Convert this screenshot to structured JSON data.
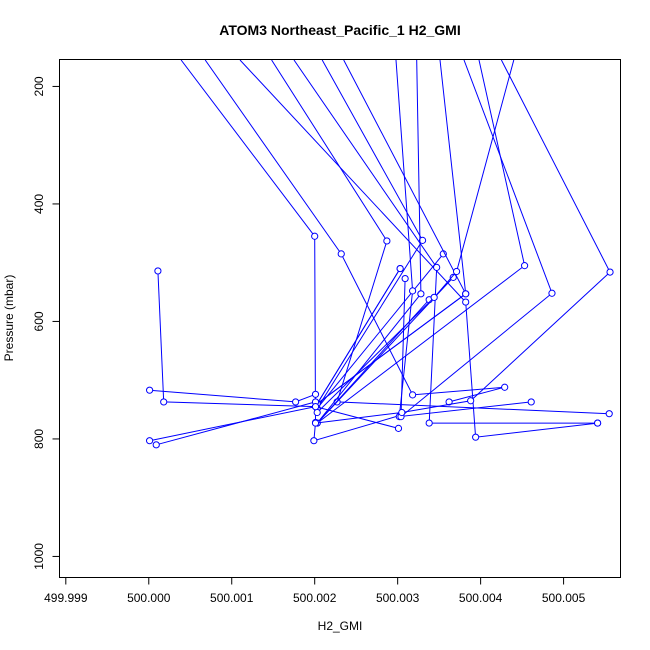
{
  "chart_data": {
    "type": "line",
    "title": "ATOM3 Northeast_Pacific_1 H2_GMI",
    "xlabel": "H2_GMI",
    "ylabel": "Pressure (mbar)",
    "xlim": [
      499.99893,
      500.00568
    ],
    "ylim": [
      1035,
      155
    ],
    "y_inverted": true,
    "grid": false,
    "legend": "none",
    "color": "#0000ff",
    "x_ticks": [
      {
        "value": 499.999,
        "label": "499.999"
      },
      {
        "value": 500.0,
        "label": "500.000"
      },
      {
        "value": 500.001,
        "label": "500.001"
      },
      {
        "value": 500.002,
        "label": "500.002"
      },
      {
        "value": 500.003,
        "label": "500.003"
      },
      {
        "value": 500.004,
        "label": "500.004"
      },
      {
        "value": 500.005,
        "label": "500.005"
      }
    ],
    "y_ticks": [
      {
        "value": 200,
        "label": "200"
      },
      {
        "value": 400,
        "label": "400"
      },
      {
        "value": 600,
        "label": "600"
      },
      {
        "value": 800,
        "label": "800"
      },
      {
        "value": 1000,
        "label": "1000"
      }
    ],
    "series": [
      {
        "x": [
          500.00039,
          500.002,
          500.00201,
          500.00199,
          500.00303
        ],
        "y": [
          155,
          455,
          772,
          803,
          760
        ]
      },
      {
        "x": [
          500.00068,
          500.00232,
          500.00318,
          500.00429,
          500.00362
        ],
        "y": [
          155,
          485,
          725,
          712,
          737
        ]
      },
      {
        "x": [
          500.0011,
          500.00382,
          500.00394,
          500.00541
        ],
        "y": [
          155,
          567,
          797,
          773
        ]
      },
      {
        "x": [
          500.00148,
          500.00287,
          500.00227,
          500.00555
        ],
        "y": [
          155,
          463,
          737,
          757
        ]
      },
      {
        "x": [
          500.00175,
          500.00347,
          500.00338,
          500.00541
        ],
        "y": [
          155,
          508,
          773,
          773
        ]
      },
      {
        "x": [
          500.00209,
          500.0033,
          500.00203,
          500.00355
        ],
        "y": [
          155,
          462,
          748,
          485
        ]
      },
      {
        "x": [
          500.00235,
          500.00382,
          500.00203,
          500.00303
        ],
        "y": [
          155,
          553,
          740,
          510
        ]
      },
      {
        "x": [
          500.00298,
          500.00318,
          500.00302,
          500.00461
        ],
        "y": [
          155,
          548,
          762,
          737
        ]
      },
      {
        "x": [
          500.00323,
          500.00328,
          500.00203,
          500.00367
        ],
        "y": [
          155,
          553,
          773,
          525
        ]
      },
      {
        "x": [
          500.00351,
          500.00382,
          500.00203,
          500.00303
        ],
        "y": [
          155,
          553,
          740,
          510
        ]
      },
      {
        "x": [
          500.0038,
          500.00486,
          500.00304,
          500.00309
        ],
        "y": [
          155,
          552,
          762,
          527
        ]
      },
      {
        "x": [
          500.00398,
          500.00453,
          500.00203,
          500.00338
        ],
        "y": [
          155,
          505,
          773,
          563
        ]
      },
      {
        "x": [
          500.00425,
          500.00556,
          500.00388,
          500.00305,
          500.00201
        ],
        "y": [
          155,
          516,
          735,
          755,
          773
        ]
      },
      {
        "x": [
          500.0044,
          500.00371,
          500.00344,
          500.00203
        ],
        "y": [
          155,
          515,
          559,
          755
        ]
      },
      {
        "x": [
          500.00001,
          500.00177,
          500.00201
        ],
        "y": [
          717,
          737,
          724
        ]
      },
      {
        "x": [
          500.00011,
          500.00018,
          500.00201
        ],
        "y": [
          514,
          737,
          745
        ]
      },
      {
        "x": [
          500.00009,
          500.00201
        ],
        "y": [
          810,
          737
        ]
      },
      {
        "x": [
          500.00001,
          500.00201,
          500.00301
        ],
        "y": [
          803,
          745,
          782
        ]
      }
    ]
  }
}
